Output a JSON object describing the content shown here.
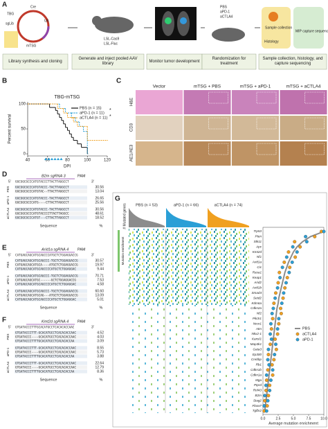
{
  "panel_a": {
    "label": "A",
    "steps": [
      "Library synthesis and cloning",
      "Generate and inject pooled AAV library",
      "Monitor tumor development",
      "Randomization for treatment",
      "Sample collection, histology, and capture sequencing"
    ],
    "labels": [
      "TBG",
      "Cre",
      "sgLib",
      "U6",
      "mTSG",
      "LSL-Cas9",
      "LSL-Fluc",
      "PBS",
      "aPD-1",
      "aCTLA4",
      "Sample collection",
      "Histology",
      "MIP capture sequencing"
    ]
  },
  "panel_b": {
    "label": "B",
    "chart_data": {
      "type": "step",
      "title": "TBG-mTSG",
      "ylabel": "Percent survival",
      "xlabel": "DPI",
      "xlim": [
        40,
        120
      ],
      "ylim": [
        0,
        100
      ],
      "xticks": [
        40,
        60,
        80,
        100,
        120
      ],
      "yticks": [
        0,
        50,
        100
      ],
      "significance": [
        "*",
        "*"
      ],
      "series": [
        {
          "name": "PBS (n = 15)",
          "color": "#111111",
          "dashed": false,
          "x": [
            40,
            62,
            68,
            70,
            72,
            74,
            76,
            78,
            80,
            82,
            84,
            86,
            90,
            94,
            100
          ],
          "values": [
            100,
            93,
            87,
            80,
            73,
            67,
            60,
            53,
            47,
            40,
            33,
            27,
            20,
            13,
            0
          ]
        },
        {
          "name": "aPD-1 (n = 11)",
          "color": "#2a9fd6",
          "dashed": true,
          "x": [
            40,
            72,
            78,
            84,
            88,
            92,
            96,
            100
          ],
          "values": [
            100,
            91,
            82,
            73,
            64,
            55,
            45,
            0
          ]
        },
        {
          "name": "aCTLA4 (n = 11)",
          "color": "#f0a020",
          "dashed": true,
          "x": [
            40,
            70,
            76,
            80,
            86,
            90,
            100,
            120
          ],
          "values": [
            100,
            91,
            82,
            73,
            64,
            55,
            27,
            27
          ]
        }
      ]
    }
  },
  "panel_c": {
    "label": "C",
    "columns": [
      "Vector",
      "mTSG + PBS",
      "mTSG + aPD-1",
      "mTSG + aCTLA4"
    ],
    "rows": [
      "H&E",
      "CD3",
      "AE1/AE3"
    ]
  },
  "panel_d": {
    "label": "D",
    "guide": "B2m sgRNA 3",
    "pam": "PAM",
    "five": "5'",
    "three": "3'",
    "reference": "GGCGGCGCCCATGTACCCTTACTTAGGCCT",
    "groups": [
      {
        "name": "PBS",
        "rows": [
          {
            "seq": "GGCGGCGCCCATGTACCC-TACTTAGGCCT",
            "pct": "30.56"
          },
          {
            "seq": "GGCGGCGCCCATGTAC--TTACTTAGGCCT",
            "pct": "13.04"
          }
        ]
      },
      {
        "name": "aPD-1",
        "rows": [
          {
            "seq": "GGCGGCGCCCATGTACCC-TACTTAGGCCT",
            "pct": "26.65"
          },
          {
            "seq": "GGCGGCGCCCATG----CTTACTTAGGCCT",
            "pct": "25.56"
          }
        ]
      },
      {
        "name": "aCTLA4",
        "rows": [
          {
            "seq": "GGCGGCGCCCATGTACCC-TACTTAGGCCT",
            "pct": "30.56"
          },
          {
            "seq": "GGCGGCGCCCATGTACCCCTTACTTAGGCC",
            "pct": "48.61"
          },
          {
            "seq": "GGCGGCGCCCATGT---CTTACTTAGGCCT",
            "pct": "18.52"
          }
        ]
      }
    ],
    "footer_seq": "Sequence",
    "footer_pct": "%"
  },
  "panel_e": {
    "label": "E",
    "guide": "Arid1a sgRNA 4",
    "pam": "PAM",
    "five": "5'",
    "three": "3'",
    "reference": "CATGAGCAGCATGCAGCCCATGCTCTGGAGGACCG",
    "groups": [
      {
        "name": "PBS",
        "rows": [
          {
            "seq": "CATGAGCAGCATGCAGCCC-TGCTCTGGAGGACCG",
            "pct": "30.57"
          },
          {
            "seq": "CATGAGCAGCATGCA----ATGCTCTGGAGGACCG",
            "pct": "19.97"
          },
          {
            "seq": "CATGAGCAGCATGCAGCCCCATGCTCTGGAGGAC",
            "pct": "9.44"
          }
        ]
      },
      {
        "name": "aPD-1",
        "rows": [
          {
            "seq": "CATGAGCAGCATGCAGCCC-TGCTCTGGAGGACCG",
            "pct": "70.71"
          },
          {
            "seq": "CATGAGCAGCATGC------GCTCTGGAGGACCG",
            "pct": "7.53"
          },
          {
            "seq": "CATGAGCAGCATGCAGCCCCATGCTCTGGAGGAC",
            "pct": "4.58"
          }
        ]
      },
      {
        "name": "aCTLA4",
        "rows": [
          {
            "seq": "CATGAGCAGCATGCAGCCC-TGCTCTGGAGGACCG",
            "pct": "60.60"
          },
          {
            "seq": "CATGAGCAGCATGCAG---ATGCTCTGGAGGACCG",
            "pct": "13.09"
          },
          {
            "seq": "CATGAGCAGCATGCAGCCCCATGCTCTGGAGGAC",
            "pct": "5.01"
          }
        ]
      }
    ],
    "footer_seq": "Sequence",
    "footer_pct": "%"
  },
  "panel_f": {
    "label": "F",
    "guide": "Kmt2d sgRNA 4",
    "pam": "PAM",
    "five": "5'",
    "three": "3'",
    "reference": "GTGATACCCTTTGCACATGCCTCACACACCAAC",
    "groups": [
      {
        "name": "PBS",
        "rows": [
          {
            "seq": "GTGATACCCTTT-GCACATGCCTCACACACCAAC",
            "pct": "4.52"
          },
          {
            "seq": "GTGATACCC----GCACATGCCTCACACACCAAC",
            "pct": "4.03"
          },
          {
            "seq": "GTGATACCCTTTTGCACATGCCTCACACACCAA",
            "pct": "3.09"
          }
        ]
      },
      {
        "name": "aPD-1",
        "rows": [
          {
            "seq": "GTGATACCCTTT-GCACATGCCTCACACACCAAC",
            "pct": "8.55"
          },
          {
            "seq": "GTGATACCC----GCACATGCCTCACACACCAAC",
            "pct": "5.73"
          },
          {
            "seq": "GTGATACCCTTTTGCACATGCCTCACACACCAA",
            "pct": "3.88"
          }
        ]
      },
      {
        "name": "aCTLA4",
        "rows": [
          {
            "seq": "GTGATACCCTTT-GCACATGCCTCACACACCAAC",
            "pct": "22.64"
          },
          {
            "seq": "GTGATACCC----GCACATGCCTCACACACCAAC",
            "pct": "12.79"
          },
          {
            "seq": "GTGATACCCTTTTGCACATGCCTCACACACCAA",
            "pct": "8.36"
          }
        ]
      }
    ],
    "footer_seq": "Sequence",
    "footer_pct": "%"
  },
  "panel_g": {
    "label": "G",
    "top_label": "# Mutated genes",
    "heat_label": "Mutation enrichment",
    "groups": [
      {
        "name": "PBS (n = 53)",
        "color": "#8c8c8c"
      },
      {
        "name": "aPD-1 (n = 66)",
        "color": "#2a9fd6"
      },
      {
        "name": "aCTLA4 (n = 74)",
        "color": "#f0a020"
      }
    ],
    "chart_data": {
      "type": "dot",
      "xlabel": "Average mutation enrichment",
      "xlim": [
        0,
        10
      ],
      "xticks": [
        {
          "value": 0,
          "label": "0.0"
        },
        2.5,
        {
          "value": 5,
          "label": "5.0"
        },
        7.5,
        {
          "value": 10,
          "label": "10.0"
        }
      ],
      "categories": [
        "Trp53",
        "Pten",
        "Stk11",
        "Apc",
        "Kmt2d",
        "Nf1",
        "Arid1a",
        "Cic",
        "Rasa1",
        "Keap1",
        "Arid2",
        "Arid1b",
        "Smad4",
        "Setd2",
        "Kdm6a",
        "Cdkn2a",
        "Nf2",
        "Pik3r1",
        "Ncor1",
        "Atm",
        "Nkx2-1",
        "Kansl1",
        "Map3k1",
        "Gata3",
        "Ep300",
        "Crebbp",
        "Rb1",
        "Cdkn1b",
        "Cdkn1a",
        "Mga",
        "Ptprd",
        "Rnf43",
        "B2m",
        "Stag2",
        "Fbxw7",
        "Tgfbr2"
      ],
      "series": [
        {
          "name": "PBS",
          "color": "#8c8c8c",
          "values": [
            10,
            7.8,
            6.5,
            5.6,
            5.0,
            4.6,
            4.2,
            3.9,
            3.6,
            3.4,
            3.2,
            3.0,
            2.8,
            2.6,
            2.5,
            2.3,
            2.2,
            2.1,
            2.0,
            1.9,
            1.8,
            1.7,
            1.6,
            1.5,
            1.4,
            1.3,
            1.2,
            1.1,
            1.0,
            0.9,
            0.8,
            0.7,
            0.6,
            0.5,
            0.4,
            0.3
          ]
        },
        {
          "name": "aCTLA4",
          "color": "#f0a020",
          "values": [
            9.6,
            8.5,
            5.2,
            6.1,
            4.2,
            5.3,
            3.5,
            4.4,
            2.7,
            4.0,
            2.5,
            3.6,
            2.1,
            3.3,
            1.8,
            2.9,
            3.0,
            1.6,
            2.6,
            1.4,
            2.4,
            2.0,
            1.2,
            2.2,
            0.9,
            1.8,
            1.5,
            0.8,
            1.6,
            0.6,
            1.1,
            0.5,
            0.9,
            0.3,
            0.7,
            0.2
          ]
        },
        {
          "name": "aPD-1",
          "color": "#2a9fd6",
          "values": [
            10,
            7.0,
            7.2,
            4.9,
            5.6,
            3.9,
            4.8,
            3.2,
            4.3,
            2.8,
            3.8,
            2.4,
            3.4,
            2.0,
            3.1,
            1.7,
            1.5,
            2.6,
            1.3,
            2.4,
            1.2,
            1.4,
            2.1,
            0.9,
            1.9,
            0.8,
            1.0,
            1.6,
            0.6,
            1.3,
            0.5,
            1.1,
            0.3,
            0.8,
            0.2,
            0.6
          ]
        }
      ]
    }
  }
}
